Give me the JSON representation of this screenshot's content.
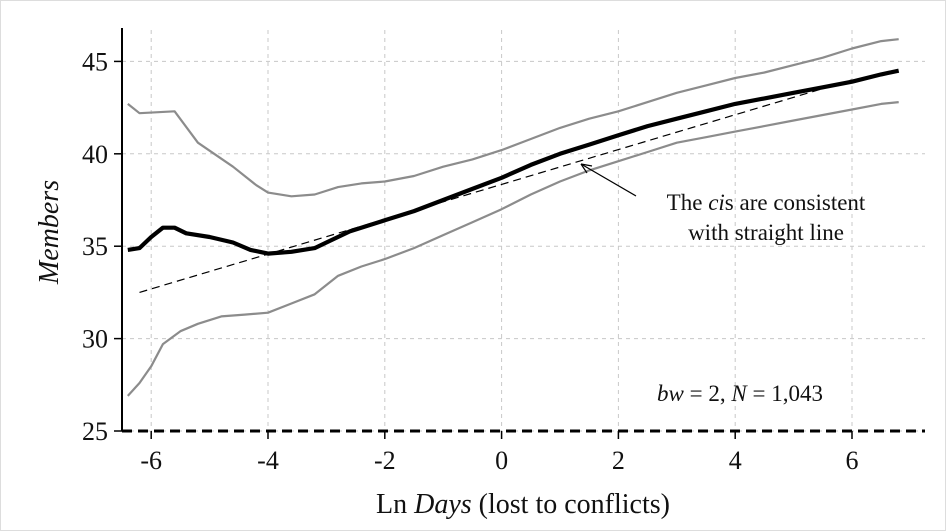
{
  "chart_data": {
    "type": "line",
    "xlabel": [
      "Ln ",
      "Days",
      " (lost to conflicts)"
    ],
    "ylabel": "Members",
    "annotations": [
      [
        "The ",
        "ci",
        "s are consistent"
      ],
      [
        "with straight line"
      ],
      [
        "bw",
        " = 2, ",
        "N",
        " = 1,043"
      ]
    ],
    "xlim": [
      -6.5,
      7.25
    ],
    "ylim": [
      25,
      46.7
    ],
    "xticks": [
      -6,
      -4,
      -2,
      0,
      2,
      4,
      6
    ],
    "yticks": [
      25,
      30,
      35,
      40,
      45
    ],
    "grid": true,
    "hline": 25,
    "series": [
      {
        "color": "#8c8c8c",
        "x": [
          -6.4,
          -6.2,
          -5.6,
          -5.2,
          -4.6,
          -4.2,
          -4,
          -3.6,
          -3.2,
          -2.8,
          -2.4,
          -2,
          -1.5,
          -1,
          -0.5,
          0,
          0.5,
          1,
          1.5,
          2,
          2.5,
          3,
          3.5,
          4,
          4.5,
          5,
          5.5,
          6,
          6.5,
          6.8
        ],
        "values": [
          42.7,
          42.2,
          42.3,
          40.6,
          39.3,
          38.3,
          37.9,
          37.7,
          37.8,
          38.2,
          38.4,
          38.5,
          38.8,
          39.3,
          39.7,
          40.2,
          40.8,
          41.4,
          41.9,
          42.3,
          42.8,
          43.3,
          43.7,
          44.1,
          44.4,
          44.8,
          45.2,
          45.7,
          46.1,
          46.2
        ]
      },
      {
        "color": "#8c8c8c",
        "x": [
          -6.4,
          -6.2,
          -6,
          -5.8,
          -5.5,
          -5.2,
          -4.8,
          -4.4,
          -4,
          -3.6,
          -3.2,
          -2.8,
          -2.4,
          -2,
          -1.5,
          -1,
          -0.5,
          0,
          0.5,
          1,
          1.5,
          2,
          2.5,
          3,
          3.5,
          4,
          4.5,
          5,
          5.5,
          6,
          6.5,
          6.8
        ],
        "values": [
          26.9,
          27.6,
          28.5,
          29.7,
          30.4,
          30.8,
          31.2,
          31.3,
          31.4,
          31.9,
          32.4,
          33.4,
          33.9,
          34.3,
          34.9,
          35.6,
          36.3,
          37.0,
          37.8,
          38.5,
          39.1,
          39.6,
          40.1,
          40.6,
          40.9,
          41.2,
          41.5,
          41.8,
          42.1,
          42.4,
          42.7,
          42.8
        ]
      },
      {
        "color": "#000000",
        "x": [
          -6.2,
          6
        ],
        "values": [
          32.5,
          44.0
        ]
      },
      {
        "color": "#000000",
        "x": [
          -6.4,
          -6.2,
          -6,
          -5.8,
          -5.6,
          -5.4,
          -5,
          -4.6,
          -4.3,
          -4,
          -3.6,
          -3.2,
          -3,
          -2.6,
          -2,
          -1.5,
          -1,
          -0.5,
          0,
          0.5,
          1,
          1.5,
          2,
          2.5,
          3,
          3.5,
          4,
          4.5,
          5,
          5.5,
          6,
          6.5,
          6.8
        ],
        "values": [
          34.8,
          34.9,
          35.5,
          36.0,
          36.0,
          35.7,
          35.5,
          35.2,
          34.8,
          34.6,
          34.7,
          34.9,
          35.2,
          35.8,
          36.4,
          36.9,
          37.5,
          38.1,
          38.7,
          39.4,
          40.0,
          40.5,
          41.0,
          41.5,
          41.9,
          42.3,
          42.7,
          43.0,
          43.3,
          43.6,
          43.9,
          44.3,
          44.5
        ]
      }
    ]
  }
}
